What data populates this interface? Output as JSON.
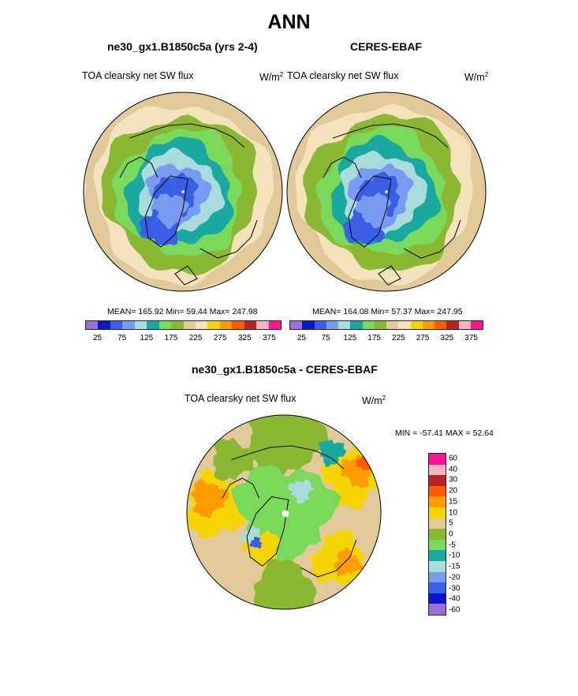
{
  "figure": {
    "title": "ANN",
    "panels": [
      {
        "title": "ne30_gx1.B1850c5a (yrs 2-4)",
        "variable": "TOA clearsky net SW flux",
        "units_base": "W/m",
        "units_exp": "2",
        "stats": "MEAN= 165.92  Min=  59.44  Max= 247.98"
      },
      {
        "title": "CERES-EBAF",
        "variable": "TOA clearsky net SW flux",
        "units_base": "W/m",
        "units_exp": "2",
        "stats": "MEAN= 164.08  Min=  57.37  Max= 247.95"
      },
      {
        "title": "ne30_gx1.B1850c5a - CERES-EBAF",
        "variable": "TOA clearsky net SW flux",
        "units_base": "W/m",
        "units_exp": "2",
        "stats": "MIN = -57.41 MAX =  52.64"
      }
    ]
  },
  "chart_data": [
    {
      "type": "heatmap",
      "projection": "north polar stereographic",
      "title": "ne30_gx1.B1850c5a (yrs 2-4)",
      "variable": "TOA clearsky net SW flux",
      "units": "W/m2",
      "mean": 165.92,
      "min": 59.44,
      "max": 247.98,
      "colorbar_levels": [
        25,
        50,
        75,
        100,
        125,
        150,
        175,
        200,
        225,
        250,
        275,
        300,
        325,
        350,
        375
      ],
      "colorbar_tick_labels": [
        "25",
        "75",
        "125",
        "175",
        "225",
        "275",
        "325",
        "375"
      ],
      "colorbar_colors": [
        "#9b6fd6",
        "#0b16c8",
        "#3a5ee6",
        "#7a9cf0",
        "#a8dcdc",
        "#1aa9a0",
        "#7ad85a",
        "#8ab832",
        "#e2c99a",
        "#f3e2bb",
        "#f6d400",
        "#ff9c00",
        "#ff5a00",
        "#b8262a",
        "#f6b6c0",
        "#ff1493"
      ],
      "zones_outer_to_center": [
        {
          "approx_value": 225,
          "color": "#e2c99a"
        },
        {
          "approx_value": 215,
          "color": "#f3e2bb"
        },
        {
          "approx_value": 200,
          "color": "#8ab832"
        },
        {
          "approx_value": 180,
          "color": "#7ad85a"
        },
        {
          "approx_value": 160,
          "color": "#1aa9a0"
        },
        {
          "approx_value": 135,
          "color": "#a8dcdc"
        },
        {
          "approx_value": 110,
          "color": "#7a9cf0"
        },
        {
          "approx_value": 80,
          "color": "#3a5ee6"
        }
      ]
    },
    {
      "type": "heatmap",
      "projection": "north polar stereographic",
      "title": "CERES-EBAF",
      "variable": "TOA clearsky net SW flux",
      "units": "W/m2",
      "mean": 164.08,
      "min": 57.37,
      "max": 247.95,
      "colorbar_levels": [
        25,
        50,
        75,
        100,
        125,
        150,
        175,
        200,
        225,
        250,
        275,
        300,
        325,
        350,
        375
      ],
      "colorbar_tick_labels": [
        "25",
        "75",
        "125",
        "175",
        "225",
        "275",
        "325",
        "375"
      ],
      "colorbar_colors": [
        "#9b6fd6",
        "#0b16c8",
        "#3a5ee6",
        "#7a9cf0",
        "#a8dcdc",
        "#1aa9a0",
        "#7ad85a",
        "#8ab832",
        "#e2c99a",
        "#f3e2bb",
        "#f6d400",
        "#ff9c00",
        "#ff5a00",
        "#b8262a",
        "#f6b6c0",
        "#ff1493"
      ],
      "zones_outer_to_center": [
        {
          "approx_value": 225,
          "color": "#e2c99a"
        },
        {
          "approx_value": 215,
          "color": "#f3e2bb"
        },
        {
          "approx_value": 200,
          "color": "#8ab832"
        },
        {
          "approx_value": 180,
          "color": "#7ad85a"
        },
        {
          "approx_value": 160,
          "color": "#1aa9a0"
        },
        {
          "approx_value": 135,
          "color": "#a8dcdc"
        },
        {
          "approx_value": 110,
          "color": "#7a9cf0"
        },
        {
          "approx_value": 80,
          "color": "#3a5ee6"
        }
      ]
    },
    {
      "type": "heatmap",
      "projection": "north polar stereographic",
      "title": "ne30_gx1.B1850c5a - CERES-EBAF",
      "variable": "TOA clearsky net SW flux",
      "units": "W/m2",
      "min": -57.41,
      "max": 52.64,
      "colorbar_tick_labels": [
        "60",
        "40",
        "30",
        "20",
        "15",
        "10",
        "5",
        "0",
        "-5",
        "-10",
        "-15",
        "-20",
        "-30",
        "-40",
        "-60"
      ],
      "colorbar_colors": [
        "#ff1493",
        "#f6b6c0",
        "#b8262a",
        "#ff5a00",
        "#ff9c00",
        "#f6d400",
        "#e2c99a",
        "#8ab832",
        "#7ad85a",
        "#1aa9a0",
        "#a8dcdc",
        "#7a9cf0",
        "#3a5ee6",
        "#0b16c8",
        "#9b6fd6"
      ]
    }
  ]
}
